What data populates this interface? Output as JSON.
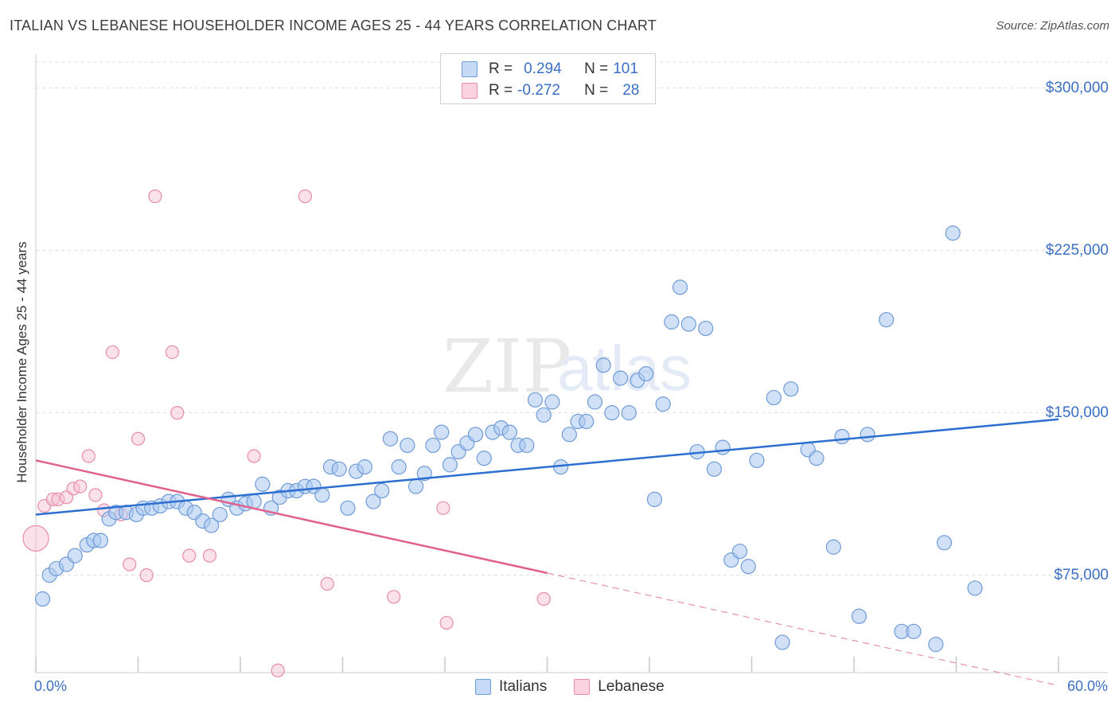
{
  "title": "ITALIAN VS LEBANESE HOUSEHOLDER INCOME AGES 25 - 44 YEARS CORRELATION CHART",
  "source": "Source: ZipAtlas.com",
  "colors": {
    "italians_fill": "#a9c8f0",
    "italians_stroke": "#6f9bd8",
    "italians_line": "#2d6fd0",
    "lebanese_fill": "#f7bdd0",
    "lebanese_stroke": "#e88ca9",
    "lebanese_line": "#e0608e",
    "accent_text": "#3a6fc4",
    "grid": "#dddddd"
  },
  "legend": {
    "rows": [
      {
        "r_label": "R =",
        "r_value": "0.294",
        "n_label": "N =",
        "n_value": "101"
      },
      {
        "r_label": "R =",
        "r_value": "-0.272",
        "n_label": "N =",
        "n_value": "28"
      }
    ]
  },
  "bottom_legend": {
    "italians": "Italians",
    "lebanese": "Lebanese"
  },
  "watermark": {
    "zip": "ZIP",
    "atlas": "atlas"
  },
  "chart_data": {
    "type": "scatter",
    "title": "ITALIAN VS LEBANESE HOUSEHOLDER INCOME AGES 25 - 44 YEARS CORRELATION CHART",
    "xlabel": "",
    "ylabel": "Householder Income Ages 25 - 44 years",
    "xlim": [
      0,
      60
    ],
    "ylim": [
      30000,
      312000
    ],
    "x_tick_labels": [
      "0.0%",
      "60.0%"
    ],
    "y_tick_values": [
      75000,
      150000,
      225000,
      300000
    ],
    "y_tick_labels": [
      "$75,000",
      "$150,000",
      "$225,000",
      "$300,000"
    ],
    "legend_position": "top-center",
    "series": [
      {
        "name": "Italians",
        "r": 0.294,
        "n": 101,
        "trend": {
          "x": [
            0,
            60
          ],
          "y": [
            103000,
            147000
          ]
        },
        "points": [
          [
            0.4,
            64000
          ],
          [
            0.8,
            75000
          ],
          [
            1.2,
            78000
          ],
          [
            1.8,
            80000
          ],
          [
            2.3,
            84000
          ],
          [
            3.0,
            89000
          ],
          [
            3.4,
            91000
          ],
          [
            3.8,
            91000
          ],
          [
            4.3,
            101000
          ],
          [
            4.7,
            104000
          ],
          [
            5.3,
            104000
          ],
          [
            5.9,
            103000
          ],
          [
            6.3,
            106000
          ],
          [
            6.8,
            106000
          ],
          [
            7.3,
            107000
          ],
          [
            7.8,
            109000
          ],
          [
            8.3,
            109000
          ],
          [
            8.8,
            106000
          ],
          [
            9.3,
            104000
          ],
          [
            9.8,
            100000
          ],
          [
            10.3,
            98000
          ],
          [
            10.8,
            103000
          ],
          [
            11.3,
            110000
          ],
          [
            11.8,
            106000
          ],
          [
            12.3,
            108000
          ],
          [
            12.8,
            109000
          ],
          [
            13.3,
            117000
          ],
          [
            13.8,
            106000
          ],
          [
            14.3,
            111000
          ],
          [
            14.8,
            114000
          ],
          [
            15.3,
            114000
          ],
          [
            15.8,
            116000
          ],
          [
            16.3,
            116000
          ],
          [
            16.8,
            112000
          ],
          [
            17.3,
            125000
          ],
          [
            17.8,
            124000
          ],
          [
            18.3,
            106000
          ],
          [
            18.8,
            123000
          ],
          [
            19.3,
            125000
          ],
          [
            19.8,
            109000
          ],
          [
            20.3,
            114000
          ],
          [
            20.8,
            138000
          ],
          [
            21.3,
            125000
          ],
          [
            21.8,
            135000
          ],
          [
            22.3,
            116000
          ],
          [
            22.8,
            122000
          ],
          [
            23.3,
            135000
          ],
          [
            23.8,
            141000
          ],
          [
            24.3,
            126000
          ],
          [
            24.8,
            132000
          ],
          [
            25.3,
            136000
          ],
          [
            25.8,
            140000
          ],
          [
            26.3,
            129000
          ],
          [
            26.8,
            141000
          ],
          [
            27.3,
            143000
          ],
          [
            27.8,
            141000
          ],
          [
            28.3,
            135000
          ],
          [
            28.8,
            135000
          ],
          [
            29.3,
            156000
          ],
          [
            29.8,
            149000
          ],
          [
            30.3,
            155000
          ],
          [
            30.8,
            125000
          ],
          [
            31.3,
            140000
          ],
          [
            31.8,
            146000
          ],
          [
            32.3,
            146000
          ],
          [
            32.8,
            155000
          ],
          [
            33.3,
            172000
          ],
          [
            33.8,
            150000
          ],
          [
            34.3,
            166000
          ],
          [
            34.8,
            150000
          ],
          [
            35.3,
            165000
          ],
          [
            35.8,
            168000
          ],
          [
            36.3,
            110000
          ],
          [
            36.8,
            154000
          ],
          [
            37.3,
            192000
          ],
          [
            37.8,
            208000
          ],
          [
            38.3,
            191000
          ],
          [
            38.8,
            132000
          ],
          [
            39.3,
            189000
          ],
          [
            39.8,
            124000
          ],
          [
            40.3,
            134000
          ],
          [
            40.8,
            82000
          ],
          [
            41.3,
            86000
          ],
          [
            41.8,
            79000
          ],
          [
            42.3,
            128000
          ],
          [
            43.3,
            157000
          ],
          [
            43.8,
            44000
          ],
          [
            44.3,
            161000
          ],
          [
            45.3,
            133000
          ],
          [
            45.8,
            129000
          ],
          [
            46.8,
            88000
          ],
          [
            47.3,
            139000
          ],
          [
            48.3,
            56000
          ],
          [
            48.8,
            140000
          ],
          [
            49.9,
            193000
          ],
          [
            50.8,
            49000
          ],
          [
            51.5,
            49000
          ],
          [
            52.8,
            43000
          ],
          [
            53.3,
            90000
          ],
          [
            53.8,
            233000
          ],
          [
            55.1,
            69000
          ]
        ]
      },
      {
        "name": "Lebanese",
        "r": -0.272,
        "n": 28,
        "trend": {
          "x": [
            0,
            30
          ],
          "y": [
            128000,
            76000
          ]
        },
        "trend_dashed_extension": {
          "x": [
            30,
            60
          ],
          "y": [
            76000,
            24000
          ]
        },
        "points": [
          [
            0.0,
            92000
          ],
          [
            0.5,
            107000
          ],
          [
            1.0,
            110000
          ],
          [
            1.3,
            110000
          ],
          [
            1.8,
            111000
          ],
          [
            2.2,
            115000
          ],
          [
            2.6,
            116000
          ],
          [
            3.1,
            130000
          ],
          [
            3.5,
            112000
          ],
          [
            4.0,
            105000
          ],
          [
            4.5,
            178000
          ],
          [
            5.0,
            103000
          ],
          [
            5.5,
            80000
          ],
          [
            6.0,
            138000
          ],
          [
            6.5,
            75000
          ],
          [
            7.0,
            250000
          ],
          [
            8.0,
            178000
          ],
          [
            8.3,
            150000
          ],
          [
            9.0,
            84000
          ],
          [
            10.2,
            84000
          ],
          [
            12.8,
            130000
          ],
          [
            14.2,
            31000
          ],
          [
            15.8,
            250000
          ],
          [
            17.1,
            71000
          ],
          [
            21.0,
            65000
          ],
          [
            23.9,
            106000
          ],
          [
            24.1,
            53000
          ],
          [
            29.8,
            64000
          ]
        ]
      }
    ]
  }
}
